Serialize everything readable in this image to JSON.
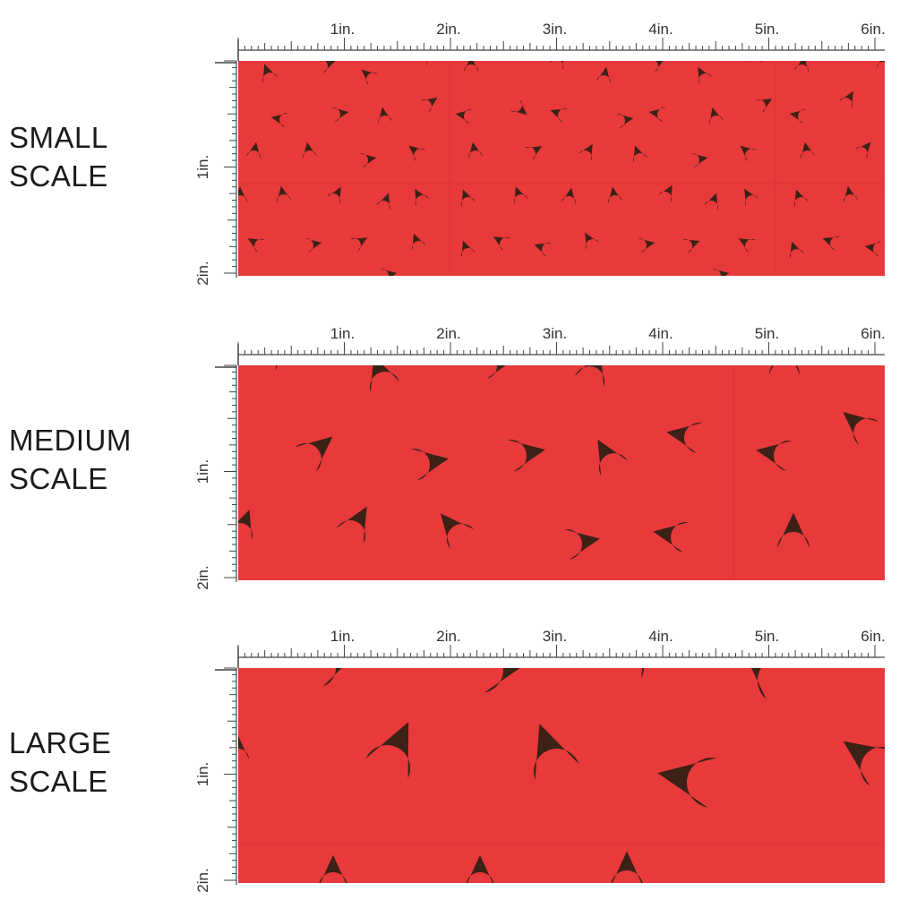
{
  "colors": {
    "fabric_red": "#e8393b",
    "seed_brown": "#3b2116",
    "ruler_ink": "#444444"
  },
  "ruler": {
    "top_labels": [
      "1in.",
      "2in.",
      "3in.",
      "4in.",
      "5in.",
      "6in."
    ],
    "side_labels": [
      "1in.",
      "2in."
    ]
  },
  "scales": [
    {
      "id": "small",
      "label_line1": "SMALL",
      "label_line2": "SCALE"
    },
    {
      "id": "medium",
      "label_line1": "MEDIUM",
      "label_line2": "SCALE"
    },
    {
      "id": "large",
      "label_line1": "LARGE",
      "label_line2": "SCALE"
    }
  ]
}
